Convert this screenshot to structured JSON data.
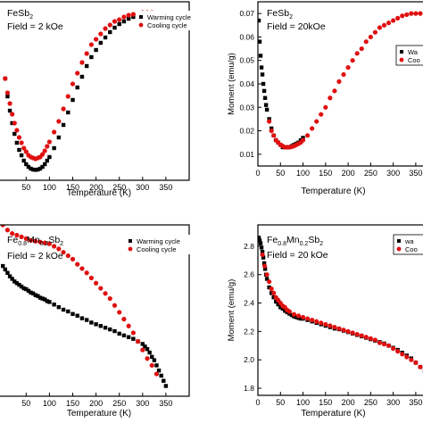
{
  "chart_data": [
    {
      "type": "scatter",
      "annotations": [
        "FeSb",
        "2",
        "Field = 2 kOe"
      ],
      "xlabel": "Temperature (K)",
      "ylabel": "",
      "xlim": [
        -10,
        400
      ],
      "ylim": [
        0,
        1
      ],
      "xticks": [
        "50",
        "100",
        "150",
        "200",
        "250",
        "300",
        "350"
      ],
      "yticks": [],
      "legend_position": "top-right",
      "series": [
        {
          "name": "Warming cycle",
          "marker": "square",
          "color": "#000000",
          "x": [
            5,
            10,
            15,
            20,
            25,
            30,
            35,
            40,
            45,
            50,
            55,
            60,
            65,
            70,
            75,
            80,
            85,
            90,
            95,
            100,
            110,
            120,
            130,
            140,
            150,
            160,
            170,
            180,
            190,
            200,
            210,
            220,
            230,
            240,
            250,
            260,
            270,
            280,
            290,
            300,
            310,
            320,
            330,
            340
          ],
          "y": [
            0.57,
            0.47,
            0.39,
            0.32,
            0.26,
            0.21,
            0.17,
            0.14,
            0.11,
            0.09,
            0.075,
            0.065,
            0.06,
            0.058,
            0.06,
            0.065,
            0.075,
            0.09,
            0.11,
            0.13,
            0.18,
            0.24,
            0.31,
            0.38,
            0.45,
            0.52,
            0.58,
            0.64,
            0.69,
            0.73,
            0.77,
            0.8,
            0.83,
            0.855,
            0.875,
            0.89,
            0.905,
            0.915,
            0.925,
            0.93,
            0.935,
            0.935,
            0.935,
            0.93
          ]
        },
        {
          "name": "Cooling cycle",
          "marker": "circle",
          "color": "#e01010",
          "x": [
            5,
            10,
            15,
            20,
            25,
            30,
            35,
            40,
            45,
            50,
            55,
            60,
            65,
            70,
            75,
            80,
            85,
            90,
            95,
            100,
            110,
            120,
            130,
            140,
            150,
            160,
            170,
            180,
            190,
            200,
            210,
            220,
            230,
            240,
            250,
            260,
            270,
            280,
            290,
            300,
            310,
            320,
            330
          ],
          "y": [
            0.57,
            0.49,
            0.43,
            0.37,
            0.32,
            0.28,
            0.24,
            0.21,
            0.18,
            0.16,
            0.14,
            0.13,
            0.125,
            0.12,
            0.125,
            0.13,
            0.145,
            0.165,
            0.19,
            0.215,
            0.27,
            0.33,
            0.4,
            0.47,
            0.54,
            0.6,
            0.66,
            0.71,
            0.76,
            0.79,
            0.82,
            0.85,
            0.87,
            0.89,
            0.9,
            0.915,
            0.925,
            0.93,
            0.935,
            0.94,
            0.94,
            0.94,
            0.935
          ]
        }
      ]
    },
    {
      "type": "scatter",
      "annotations": [
        "FeSb",
        "2",
        "Field = 20kOe"
      ],
      "xlabel": "Temperature (K)",
      "ylabel": "Moment (emu/g)",
      "xlim": [
        0,
        370
      ],
      "ylim": [
        0.005,
        0.075
      ],
      "xticks": [
        "0",
        "50",
        "100",
        "150",
        "200",
        "250",
        "300",
        "350"
      ],
      "yticks": [
        "0.01",
        "0.02",
        "0.03",
        "0.04",
        "0.05",
        "0.06",
        "0.07"
      ],
      "legend_position": "right",
      "legend_labels": [
        "Wa",
        "Coo"
      ],
      "series": [
        {
          "name": "Warming cycle",
          "marker": "square",
          "color": "#000000",
          "x": [
            2,
            4,
            6,
            8,
            10,
            12,
            14,
            16,
            18,
            20,
            25,
            30,
            35,
            40,
            45,
            50,
            55,
            60,
            65,
            70,
            75,
            80,
            85,
            90,
            95,
            100
          ],
          "y": [
            0.067,
            0.058,
            0.052,
            0.047,
            0.044,
            0.04,
            0.037,
            0.034,
            0.031,
            0.029,
            0.025,
            0.021,
            0.018,
            0.016,
            0.015,
            0.014,
            0.013,
            0.013,
            0.013,
            0.013,
            0.0135,
            0.014,
            0.0145,
            0.015,
            0.016,
            0.017
          ]
        },
        {
          "name": "Cooling cycle",
          "marker": "circle",
          "color": "#e01010",
          "x": [
            25,
            30,
            35,
            40,
            45,
            50,
            55,
            60,
            65,
            70,
            75,
            80,
            85,
            90,
            95,
            100,
            110,
            120,
            130,
            140,
            150,
            160,
            170,
            180,
            190,
            200,
            210,
            220,
            230,
            240,
            250,
            260,
            270,
            280,
            290,
            300,
            310,
            320,
            330,
            340,
            350,
            360
          ],
          "y": [
            0.024,
            0.02,
            0.018,
            0.016,
            0.015,
            0.014,
            0.0135,
            0.013,
            0.013,
            0.013,
            0.0132,
            0.0135,
            0.014,
            0.0145,
            0.015,
            0.016,
            0.018,
            0.021,
            0.024,
            0.027,
            0.03,
            0.034,
            0.037,
            0.041,
            0.044,
            0.047,
            0.05,
            0.053,
            0.055,
            0.058,
            0.06,
            0.062,
            0.064,
            0.065,
            0.066,
            0.067,
            0.068,
            0.069,
            0.0695,
            0.07,
            0.07,
            0.07
          ]
        }
      ]
    },
    {
      "type": "scatter",
      "annotations": [
        "Fe",
        "0.8",
        "Mn",
        "0.2",
        "Sb",
        "2",
        "Field = 2 kOe"
      ],
      "xlabel": "Temperature (K)",
      "ylabel": "",
      "xlim": [
        -10,
        400
      ],
      "ylim": [
        0,
        1
      ],
      "xticks": [
        "50",
        "100",
        "150",
        "200",
        "250",
        "300",
        "350"
      ],
      "yticks": [],
      "legend_position": "top-right",
      "series": [
        {
          "name": "Warming cycle",
          "marker": "square",
          "color": "#000000",
          "x": [
            0,
            5,
            10,
            15,
            20,
            25,
            30,
            35,
            40,
            45,
            50,
            55,
            60,
            65,
            70,
            75,
            80,
            85,
            90,
            95,
            100,
            110,
            120,
            130,
            140,
            150,
            160,
            170,
            180,
            190,
            200,
            210,
            220,
            230,
            240,
            250,
            260,
            270,
            280,
            290,
            300,
            305,
            310,
            315,
            320,
            325,
            330,
            335,
            340,
            345,
            350
          ],
          "y": [
            0.76,
            0.74,
            0.72,
            0.7,
            0.685,
            0.67,
            0.66,
            0.65,
            0.64,
            0.63,
            0.625,
            0.615,
            0.605,
            0.6,
            0.59,
            0.585,
            0.575,
            0.57,
            0.565,
            0.555,
            0.55,
            0.535,
            0.52,
            0.505,
            0.495,
            0.48,
            0.47,
            0.455,
            0.445,
            0.43,
            0.42,
            0.41,
            0.4,
            0.39,
            0.38,
            0.365,
            0.355,
            0.345,
            0.335,
            0.32,
            0.305,
            0.29,
            0.275,
            0.255,
            0.23,
            0.21,
            0.18,
            0.15,
            0.12,
            0.09,
            0.06
          ]
        },
        {
          "name": "Cooling cycle",
          "marker": "circle",
          "color": "#e01010",
          "x": [
            0,
            10,
            20,
            30,
            40,
            50,
            60,
            70,
            80,
            90,
            100,
            110,
            120,
            130,
            140,
            150,
            160,
            170,
            180,
            190,
            200,
            210,
            220,
            230,
            240,
            250,
            260,
            270,
            280,
            290,
            300,
            310,
            320,
            330
          ],
          "y": [
            1.0,
            0.97,
            0.95,
            0.94,
            0.93,
            0.92,
            0.91,
            0.905,
            0.9,
            0.895,
            0.89,
            0.875,
            0.86,
            0.84,
            0.82,
            0.8,
            0.77,
            0.745,
            0.72,
            0.69,
            0.66,
            0.63,
            0.6,
            0.57,
            0.53,
            0.49,
            0.45,
            0.41,
            0.37,
            0.32,
            0.27,
            0.22,
            0.18,
            0.13
          ]
        }
      ]
    },
    {
      "type": "scatter",
      "annotations": [
        "Fe",
        "0.8",
        "Mn",
        "0.2",
        "Sb",
        "2",
        "Field = 20 kOe"
      ],
      "xlabel": "Temperature (K)",
      "ylabel": "Moment (emu/g)",
      "xlim": [
        0,
        370
      ],
      "ylim": [
        1.75,
        2.95
      ],
      "xticks": [
        "0",
        "50",
        "100",
        "150",
        "200",
        "250",
        "300",
        "350"
      ],
      "yticks": [
        "1.8",
        "2.0",
        "2.2",
        "2.4",
        "2.6",
        "2.8"
      ],
      "legend_position": "top-right",
      "legend_labels": [
        "wa",
        "Coo"
      ],
      "series": [
        {
          "name": "Warming cycle",
          "marker": "square",
          "color": "#000000",
          "x": [
            2,
            4,
            6,
            8,
            10,
            12,
            14,
            16,
            18,
            20,
            25,
            30,
            35,
            40,
            45,
            50,
            55,
            60,
            65,
            70,
            75,
            80,
            85,
            90,
            95,
            100,
            110,
            120,
            130,
            140,
            150,
            160,
            170,
            180,
            190,
            200,
            210,
            220,
            230,
            240,
            250,
            260,
            270,
            280,
            290,
            300,
            310,
            320,
            330,
            340,
            350,
            360,
            370
          ],
          "y": [
            2.86,
            2.84,
            2.82,
            2.79,
            2.76,
            2.72,
            2.68,
            2.64,
            2.6,
            2.57,
            2.51,
            2.47,
            2.44,
            2.41,
            2.39,
            2.37,
            2.36,
            2.345,
            2.335,
            2.325,
            2.315,
            2.305,
            2.3,
            2.295,
            2.29,
            2.29,
            2.28,
            2.27,
            2.26,
            2.25,
            2.24,
            2.23,
            2.22,
            2.215,
            2.205,
            2.195,
            2.185,
            2.175,
            2.165,
            2.155,
            2.145,
            2.135,
            2.125,
            2.115,
            2.1,
            2.085,
            2.07,
            2.05,
            2.03,
            2.01,
            1.98,
            1.95,
            1.92
          ]
        },
        {
          "name": "Cooling cycle",
          "marker": "circle",
          "color": "#e01010",
          "x": [
            10,
            15,
            20,
            25,
            30,
            35,
            40,
            45,
            50,
            55,
            60,
            65,
            70,
            80,
            90,
            100,
            110,
            120,
            130,
            140,
            150,
            160,
            170,
            180,
            190,
            200,
            210,
            220,
            230,
            240,
            250,
            260,
            270,
            280,
            290,
            300,
            310,
            320,
            330,
            340,
            350,
            360
          ],
          "y": [
            2.74,
            2.66,
            2.6,
            2.55,
            2.5,
            2.47,
            2.44,
            2.42,
            2.4,
            2.38,
            2.37,
            2.35,
            2.34,
            2.32,
            2.31,
            2.3,
            2.29,
            2.28,
            2.27,
            2.26,
            2.25,
            2.24,
            2.23,
            2.22,
            2.21,
            2.2,
            2.19,
            2.18,
            2.17,
            2.16,
            2.15,
            2.14,
            2.12,
            2.11,
            2.1,
            2.08,
            2.06,
            2.04,
            2.02,
            2.0,
            1.98,
            1.95
          ]
        }
      ]
    }
  ]
}
